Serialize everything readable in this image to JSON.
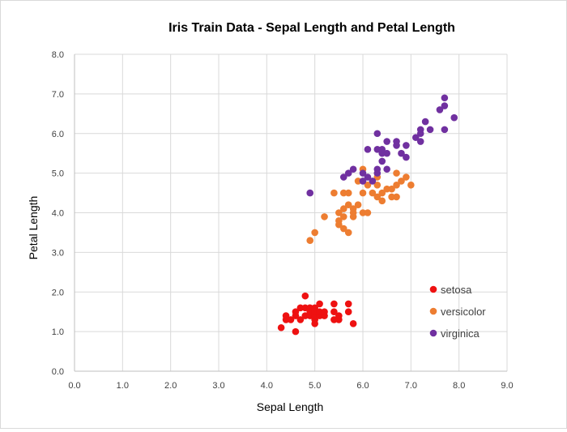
{
  "chart_data": {
    "type": "scatter",
    "title": "Iris Train Data - Sepal Length and Petal Length",
    "xlabel": "Sepal Length",
    "ylabel": "Petal  Length",
    "xlim": [
      0,
      9
    ],
    "ylim": [
      0,
      8
    ],
    "x_ticks": [
      "0.0",
      "1.0",
      "2.0",
      "3.0",
      "4.0",
      "5.0",
      "6.0",
      "7.0",
      "8.0",
      "9.0"
    ],
    "y_ticks": [
      "0.0",
      "1.0",
      "2.0",
      "3.0",
      "4.0",
      "5.0",
      "6.0",
      "7.0",
      "8.0"
    ],
    "grid": true,
    "legend_position": "right",
    "series": [
      {
        "name": "setosa",
        "color": "#ee1111",
        "points": [
          [
            4.3,
            1.1
          ],
          [
            4.4,
            1.3
          ],
          [
            4.4,
            1.4
          ],
          [
            4.5,
            1.3
          ],
          [
            4.6,
            1.0
          ],
          [
            4.6,
            1.4
          ],
          [
            4.6,
            1.5
          ],
          [
            4.7,
            1.3
          ],
          [
            4.7,
            1.6
          ],
          [
            4.8,
            1.4
          ],
          [
            4.8,
            1.6
          ],
          [
            4.8,
            1.9
          ],
          [
            4.9,
            1.4
          ],
          [
            4.9,
            1.5
          ],
          [
            4.9,
            1.6
          ],
          [
            5.0,
            1.2
          ],
          [
            5.0,
            1.3
          ],
          [
            5.0,
            1.4
          ],
          [
            5.0,
            1.5
          ],
          [
            5.0,
            1.6
          ],
          [
            5.1,
            1.4
          ],
          [
            5.1,
            1.5
          ],
          [
            5.1,
            1.7
          ],
          [
            5.2,
            1.4
          ],
          [
            5.2,
            1.5
          ],
          [
            5.4,
            1.3
          ],
          [
            5.4,
            1.5
          ],
          [
            5.4,
            1.7
          ],
          [
            5.5,
            1.3
          ],
          [
            5.5,
            1.4
          ],
          [
            5.7,
            1.5
          ],
          [
            5.7,
            1.7
          ],
          [
            5.8,
            1.2
          ]
        ]
      },
      {
        "name": "versicolor",
        "color": "#ed7d31",
        "points": [
          [
            4.9,
            3.3
          ],
          [
            5.0,
            3.5
          ],
          [
            5.2,
            3.9
          ],
          [
            5.4,
            4.5
          ],
          [
            5.5,
            3.7
          ],
          [
            5.5,
            3.8
          ],
          [
            5.5,
            4.0
          ],
          [
            5.6,
            3.6
          ],
          [
            5.6,
            3.9
          ],
          [
            5.6,
            4.1
          ],
          [
            5.6,
            4.5
          ],
          [
            5.7,
            3.5
          ],
          [
            5.7,
            4.2
          ],
          [
            5.7,
            4.5
          ],
          [
            5.8,
            3.9
          ],
          [
            5.8,
            4.0
          ],
          [
            5.8,
            4.1
          ],
          [
            5.9,
            4.2
          ],
          [
            5.9,
            4.8
          ],
          [
            6.0,
            4.0
          ],
          [
            6.0,
            4.5
          ],
          [
            6.0,
            5.1
          ],
          [
            6.1,
            4.0
          ],
          [
            6.1,
            4.7
          ],
          [
            6.2,
            4.5
          ],
          [
            6.3,
            4.4
          ],
          [
            6.3,
            4.7
          ],
          [
            6.3,
            4.9
          ],
          [
            6.4,
            4.3
          ],
          [
            6.4,
            4.5
          ],
          [
            6.5,
            4.6
          ],
          [
            6.6,
            4.4
          ],
          [
            6.6,
            4.6
          ],
          [
            6.7,
            4.4
          ],
          [
            6.7,
            4.7
          ],
          [
            6.7,
            5.0
          ],
          [
            6.8,
            4.8
          ],
          [
            6.9,
            4.9
          ],
          [
            7.0,
            4.7
          ]
        ]
      },
      {
        "name": "virginica",
        "color": "#7030a0",
        "points": [
          [
            4.9,
            4.5
          ],
          [
            5.6,
            4.9
          ],
          [
            5.7,
            5.0
          ],
          [
            5.8,
            5.1
          ],
          [
            6.0,
            4.8
          ],
          [
            6.0,
            5.0
          ],
          [
            6.1,
            4.9
          ],
          [
            6.1,
            5.6
          ],
          [
            6.2,
            4.8
          ],
          [
            6.3,
            5.0
          ],
          [
            6.3,
            5.1
          ],
          [
            6.3,
            5.6
          ],
          [
            6.3,
            6.0
          ],
          [
            6.4,
            5.3
          ],
          [
            6.4,
            5.5
          ],
          [
            6.4,
            5.6
          ],
          [
            6.5,
            5.1
          ],
          [
            6.5,
            5.5
          ],
          [
            6.5,
            5.8
          ],
          [
            6.7,
            5.7
          ],
          [
            6.7,
            5.8
          ],
          [
            6.8,
            5.5
          ],
          [
            6.9,
            5.4
          ],
          [
            6.9,
            5.7
          ],
          [
            7.1,
            5.9
          ],
          [
            7.2,
            5.8
          ],
          [
            7.2,
            6.0
          ],
          [
            7.2,
            6.1
          ],
          [
            7.4,
            6.1
          ],
          [
            7.6,
            6.6
          ],
          [
            7.7,
            6.1
          ],
          [
            7.7,
            6.7
          ],
          [
            7.7,
            6.9
          ],
          [
            7.3,
            6.3
          ],
          [
            7.9,
            6.4
          ]
        ]
      }
    ]
  }
}
